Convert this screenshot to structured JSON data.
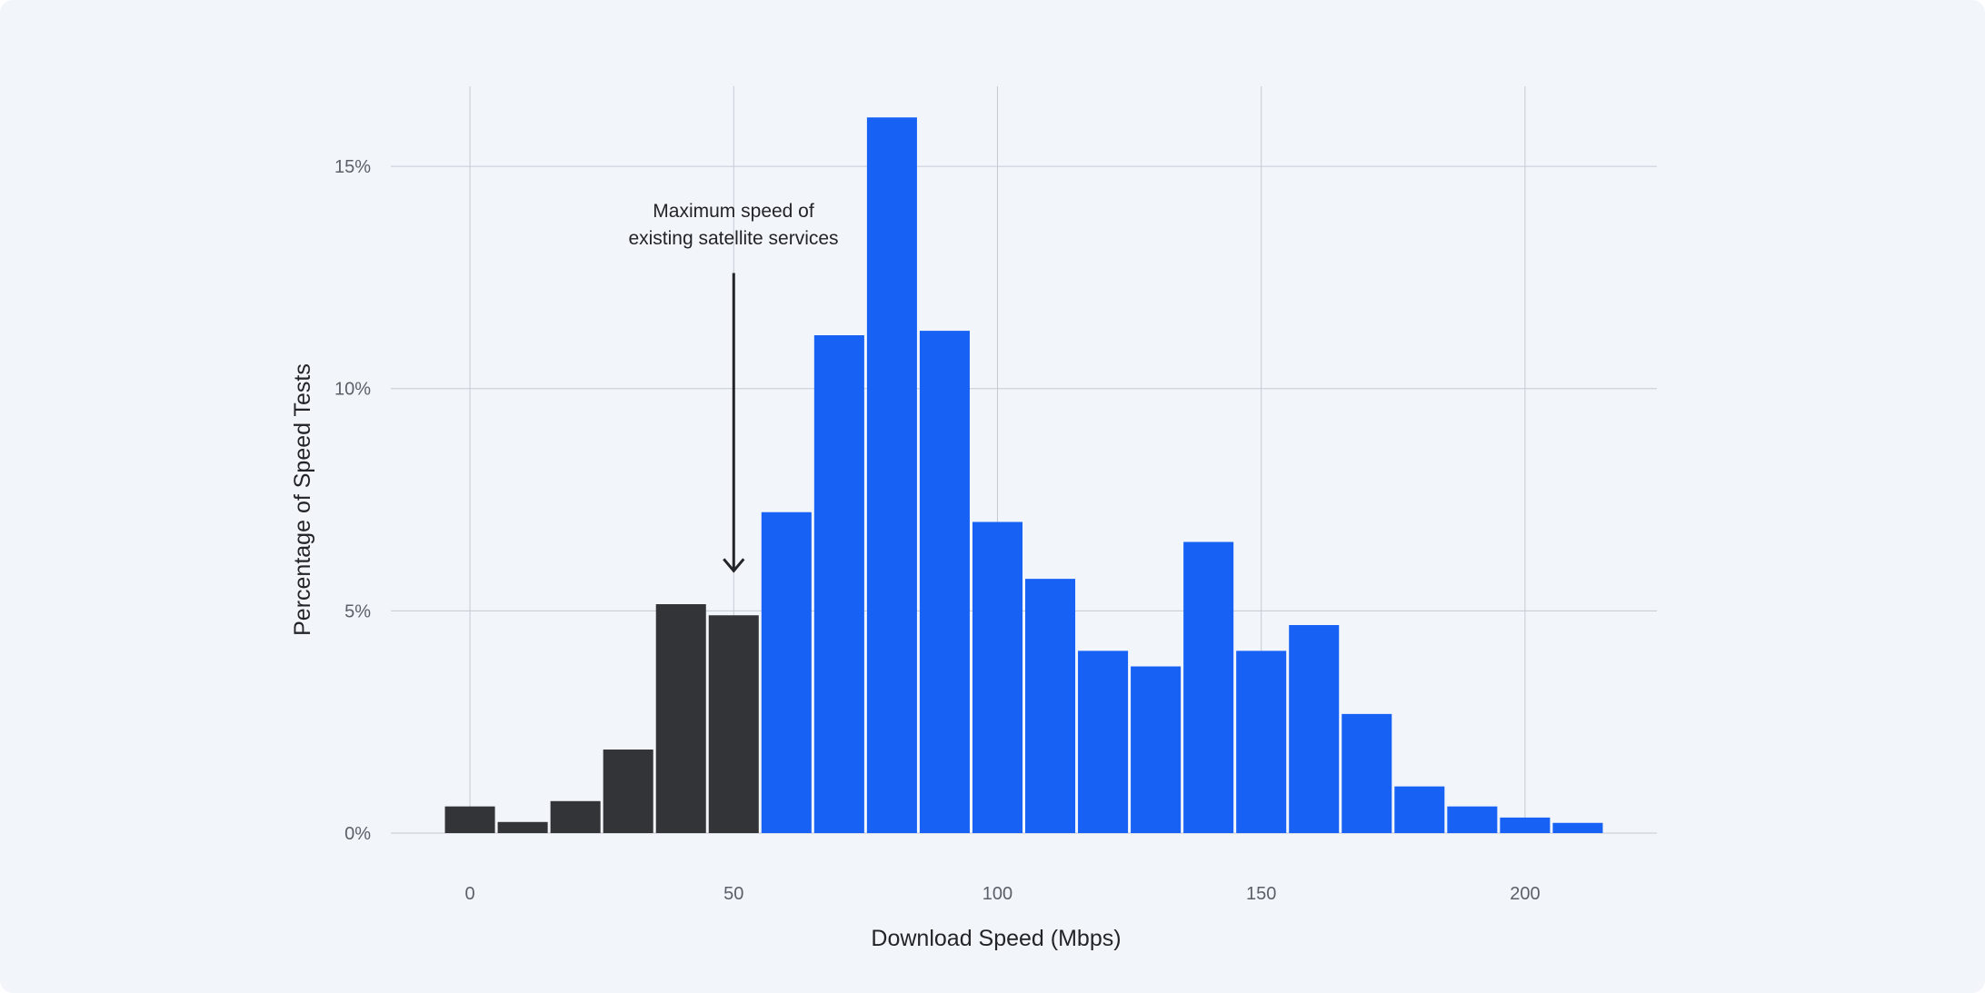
{
  "chart_data": {
    "type": "bar",
    "xlabel": "Download Speed (Mbps)",
    "ylabel": "Percentage of Speed Tests",
    "x_ticks": [
      0,
      50,
      100,
      150,
      200
    ],
    "y_ticks": [
      0,
      5,
      10,
      15
    ],
    "y_tick_suffix": "%",
    "xlim": [
      -15,
      225
    ],
    "ylim": [
      0,
      16.8
    ],
    "bin_width": 10,
    "bins": [
      0,
      10,
      20,
      30,
      40,
      50,
      60,
      70,
      80,
      90,
      100,
      110,
      120,
      130,
      140,
      150,
      160,
      170,
      180,
      190,
      200,
      210
    ],
    "values": [
      0.6,
      0.25,
      0.72,
      1.88,
      5.15,
      4.9,
      7.22,
      11.2,
      16.1,
      11.3,
      7.0,
      5.72,
      4.1,
      3.75,
      6.55,
      4.1,
      4.68,
      2.68,
      1.05,
      0.6,
      0.35,
      0.23
    ],
    "series_split_at": 55,
    "colors": {
      "below": "#333438",
      "above": "#1762f5"
    },
    "grid": true,
    "annotation": {
      "lines": [
        "Maximum speed of",
        "existing satellite services"
      ],
      "x": 50,
      "arrow_from_y": 12.6,
      "arrow_to_y": 5.9
    }
  }
}
